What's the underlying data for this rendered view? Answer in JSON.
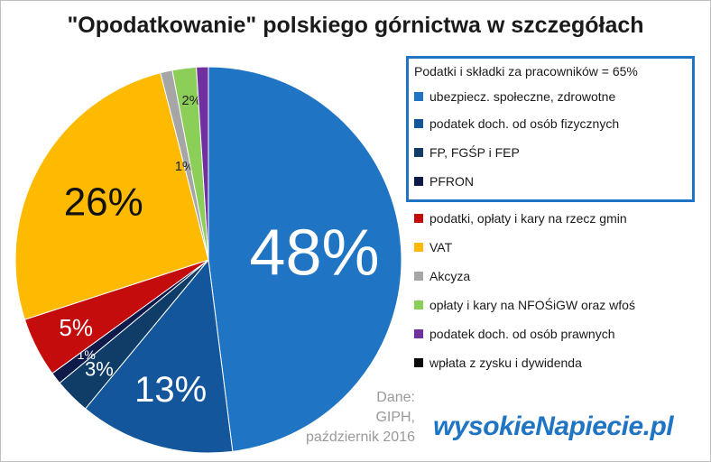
{
  "chart_data": {
    "type": "pie",
    "title": "\"Opodatkowanie\" polskiego górnictwa w szczegółach",
    "legend_placement": "right",
    "legend_group": {
      "title": "Podatki i składki za pracowników = 65%",
      "size": 4
    },
    "slices": [
      {
        "name": "ubezpiecz. społeczne, zdrowotne",
        "value": 48,
        "label": "48%",
        "color": "#1f74c4"
      },
      {
        "name": "podatek doch. od osób fizycznych",
        "value": 13,
        "label": "13%",
        "color": "#14569b"
      },
      {
        "name": "FP, FGŚP i FEP",
        "value": 3,
        "label": "3%",
        "color": "#0f3d68"
      },
      {
        "name": "PFRON",
        "value": 1,
        "label": "1%",
        "color": "#0d1a4a"
      },
      {
        "name": "podatki, opłaty i kary na rzecz gmin",
        "value": 5,
        "label": "5%",
        "color": "#c40c0c"
      },
      {
        "name": "VAT",
        "value": 26,
        "label": "26%",
        "color": "#fdba00"
      },
      {
        "name": "Akcyza",
        "value": 1,
        "label": "1%",
        "color": "#a6a6a6"
      },
      {
        "name": "opłaty i kary na NFOŚiGW oraz wfoś",
        "value": 2,
        "label": "2%",
        "color": "#8bcf58"
      },
      {
        "name": "podatek doch. od osób prawnych",
        "value": 1,
        "label": "",
        "color": "#7030a0"
      },
      {
        "name": "wpłata z zysku i dywidenda",
        "value": 0,
        "label": "",
        "color": "#0a0a0a"
      }
    ]
  },
  "source_note": [
    "Dane:",
    "GIPH,",
    "październik 2016"
  ],
  "brand": "wysokieNapiecie.pl"
}
